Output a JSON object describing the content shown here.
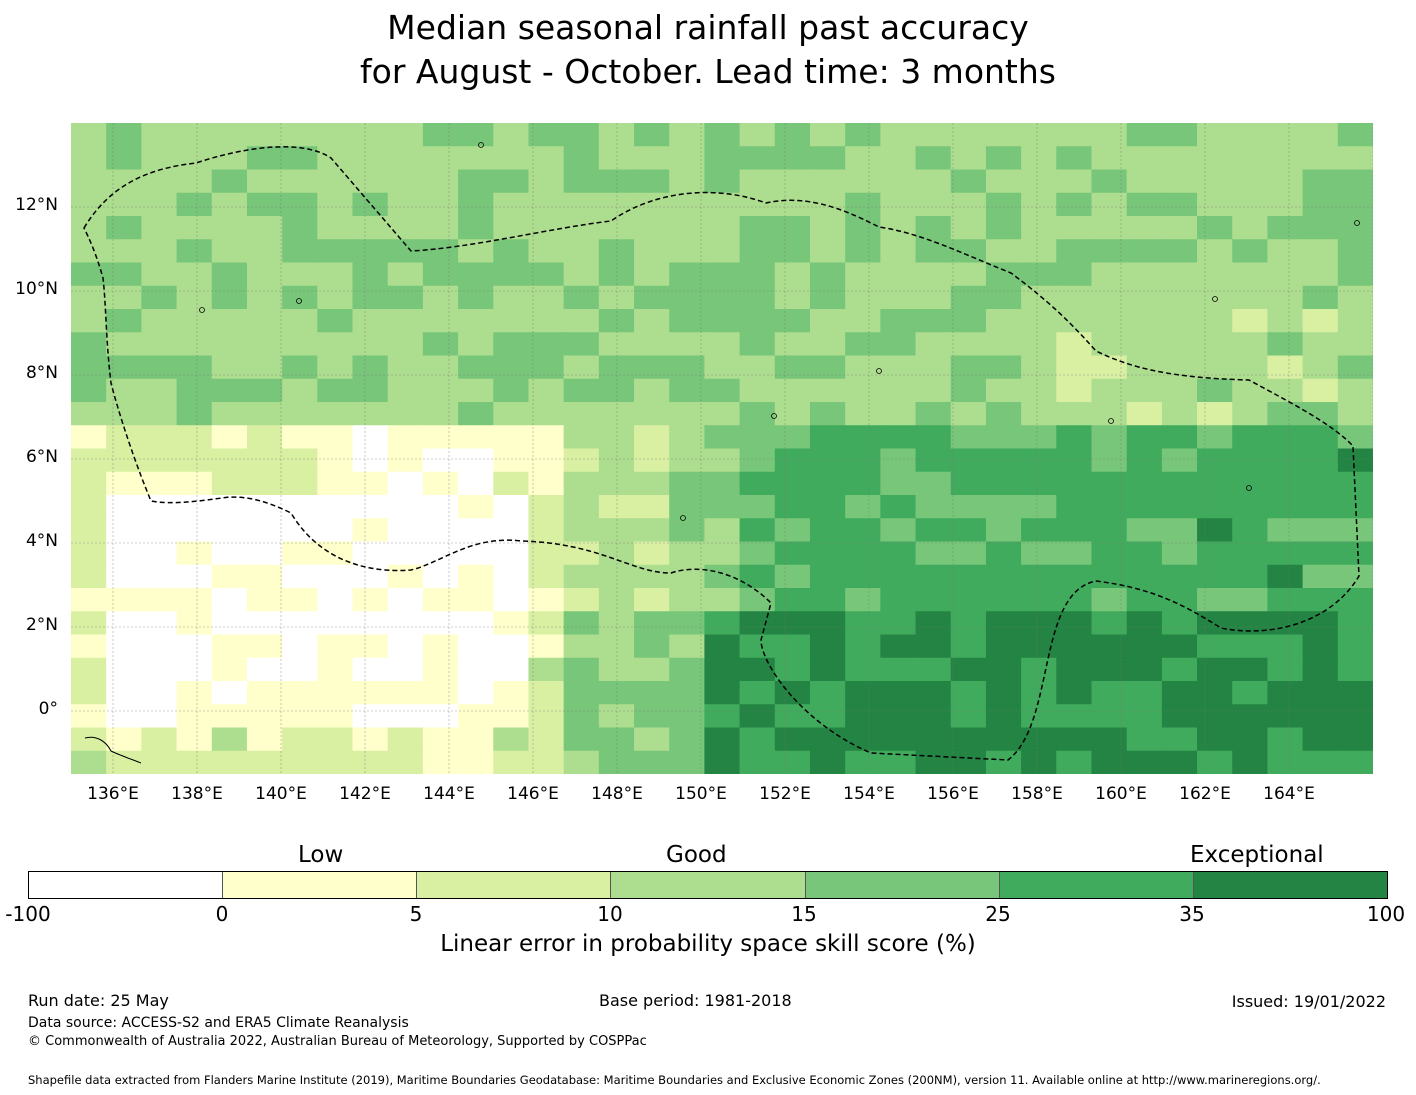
{
  "title": {
    "line1": "Median seasonal rainfall past accuracy",
    "line2": "for August - October. Lead time: 3 months"
  },
  "map": {
    "lat_labels": [
      "12°N",
      "10°N",
      "8°N",
      "6°N",
      "4°N",
      "2°N",
      "0°"
    ],
    "lon_labels": [
      "136°E",
      "138°E",
      "140°E",
      "142°E",
      "144°E",
      "146°E",
      "148°E",
      "150°E",
      "152°E",
      "154°E",
      "156°E",
      "158°E",
      "160°E",
      "162°E",
      "164°E"
    ],
    "grid_cols": 37,
    "grid_rows": 28,
    "level_colors": [
      "#ffffff",
      "#ffffcc",
      "#d9f0a3",
      "#addd8e",
      "#78c679",
      "#41ab5d",
      "#238443"
    ],
    "eez_boundary_style": "dashed"
  },
  "colorbar": {
    "categories": [
      "Low",
      "Good",
      "Exceptional"
    ],
    "ticks": [
      "-100",
      "0",
      "5",
      "10",
      "15",
      "25",
      "35",
      "100"
    ],
    "colors": [
      "#ffffff",
      "#ffffcc",
      "#d9f0a3",
      "#addd8e",
      "#78c679",
      "#41ab5d",
      "#238443"
    ],
    "label": "Linear error in probability space skill score (%)"
  },
  "footer": {
    "run_date": "Run date: 25 May",
    "base_period": "Base period: 1981-2018",
    "issued": "Issued: 19/01/2022",
    "data_source": "Data source: ACCESS-S2 and ERA5 Climate Reanalysis",
    "copyright": "© Commonwealth of Australia 2022, Australian Bureau of Meteorology, Supported by COSPPac",
    "shapefile": "Shapefile data extracted from Flanders Marine Institute (2019), Maritime Boundaries Geodatabase: Maritime Boundaries and Exclusive Economic Zones (200NM), version 11. Available online at http://www.marineregions.org/."
  }
}
